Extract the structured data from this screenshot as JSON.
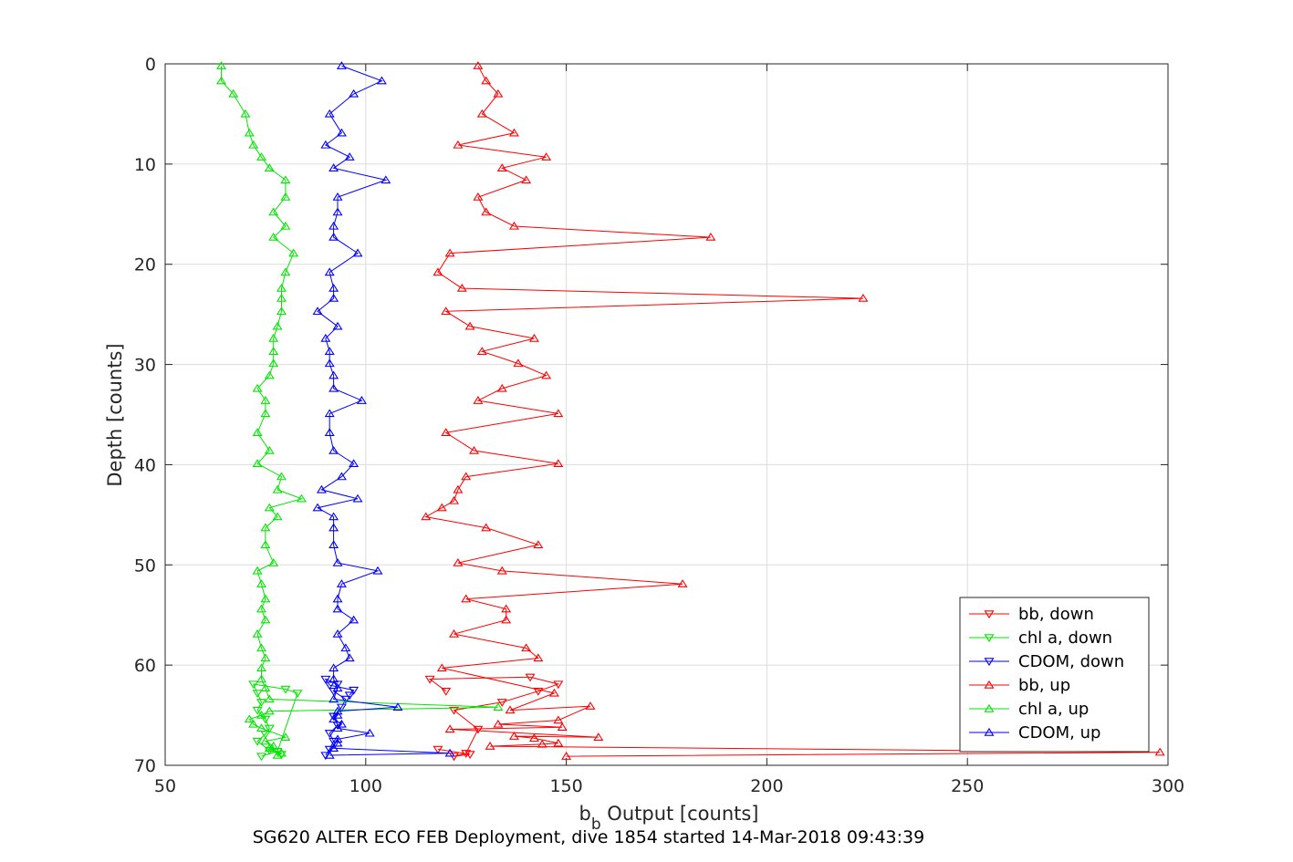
{
  "chart_data": {
    "type": "line",
    "xlabel_main": "b",
    "xlabel_sub": "b",
    "xlabel_rest": " Output [counts]",
    "ylabel": "Depth [counts]",
    "caption": "SG620 ALTER ECO FEB Deployment, dive 1854 started 14-Mar-2018 09:43:39",
    "xlim": [
      50,
      300
    ],
    "ylim": [
      0,
      70
    ],
    "y_reversed": true,
    "grid": true,
    "legend_placement": "bottom-right",
    "xticks": [
      "50",
      "100",
      "150",
      "200",
      "250",
      "300"
    ],
    "yticks": [
      "0",
      "10",
      "20",
      "30",
      "40",
      "50",
      "60",
      "70"
    ],
    "series": [
      {
        "name": "bb, down",
        "color": "#ff0000",
        "marker": "down",
        "points": [
          [
            118,
            68.4
          ],
          [
            126,
            68.9
          ],
          [
            122,
            69.1
          ],
          [
            125,
            68.8
          ],
          [
            128,
            66.4
          ],
          [
            122,
            64.5
          ],
          [
            134,
            63.7
          ],
          [
            143,
            62.6
          ],
          [
            148,
            61.9
          ],
          [
            141,
            61.2
          ],
          [
            116,
            61.4
          ],
          [
            120,
            62.6
          ]
        ]
      },
      {
        "name": "chl a, down",
        "color": "#00e600",
        "marker": "down",
        "points": [
          [
            79,
            68.9
          ],
          [
            76,
            68.5
          ],
          [
            73,
            67.6
          ],
          [
            75,
            66.9
          ],
          [
            76,
            66.3
          ],
          [
            75,
            65.4
          ],
          [
            73,
            64.5
          ],
          [
            74,
            63.7
          ],
          [
            73,
            62.8
          ],
          [
            72,
            61.9
          ],
          [
            80,
            62.4
          ],
          [
            83,
            62.8
          ],
          [
            78,
            68.6
          ],
          [
            74,
            69.1
          ]
        ]
      },
      {
        "name": "CDOM, down",
        "color": "#0000ff",
        "marker": "down",
        "points": [
          [
            90,
            69.0
          ],
          [
            91,
            68.4
          ],
          [
            92,
            67.6
          ],
          [
            91,
            66.8
          ],
          [
            93,
            66.0
          ],
          [
            92,
            65.1
          ],
          [
            94,
            64.2
          ],
          [
            95,
            63.4
          ],
          [
            92,
            62.6
          ],
          [
            93,
            61.9
          ],
          [
            90,
            61.4
          ],
          [
            91,
            62.0
          ],
          [
            97,
            62.5
          ],
          [
            96,
            63.0
          ]
        ]
      },
      {
        "name": "bb, up",
        "color": "#ff0000",
        "marker": "up",
        "points": [
          [
            128,
            0.2
          ],
          [
            130,
            1.7
          ],
          [
            133,
            3.0
          ],
          [
            129,
            5.0
          ],
          [
            137,
            6.9
          ],
          [
            123,
            8.1
          ],
          [
            145,
            9.3
          ],
          [
            134,
            10.4
          ],
          [
            140,
            11.6
          ],
          [
            128,
            13.3
          ],
          [
            130,
            14.8
          ],
          [
            137,
            16.2
          ],
          [
            186,
            17.3
          ],
          [
            121,
            18.9
          ],
          [
            118,
            20.8
          ],
          [
            124,
            22.4
          ],
          [
            224,
            23.4
          ],
          [
            120,
            24.7
          ],
          [
            126,
            26.2
          ],
          [
            142,
            27.4
          ],
          [
            129,
            28.7
          ],
          [
            138,
            29.9
          ],
          [
            145,
            31.1
          ],
          [
            134,
            32.4
          ],
          [
            128,
            33.6
          ],
          [
            148,
            34.9
          ],
          [
            120,
            36.8
          ],
          [
            127,
            38.6
          ],
          [
            148,
            39.9
          ],
          [
            125,
            41.2
          ],
          [
            123,
            42.5
          ],
          [
            122,
            43.6
          ],
          [
            119,
            44.3
          ],
          [
            115,
            45.2
          ],
          [
            130,
            46.3
          ],
          [
            143,
            48.0
          ],
          [
            123,
            49.8
          ],
          [
            134,
            50.6
          ],
          [
            179,
            51.9
          ],
          [
            125,
            53.4
          ],
          [
            135,
            54.4
          ],
          [
            135,
            55.5
          ],
          [
            122,
            56.9
          ],
          [
            140,
            58.3
          ],
          [
            143,
            59.3
          ],
          [
            119,
            60.3
          ],
          [
            147,
            62.8
          ],
          [
            136,
            64.5
          ],
          [
            156,
            64.1
          ],
          [
            148,
            65.5
          ],
          [
            133,
            65.9
          ],
          [
            149,
            66.2
          ],
          [
            121,
            66.4
          ],
          [
            158,
            67.2
          ],
          [
            137,
            67.1
          ],
          [
            142,
            67.3
          ],
          [
            148,
            67.8
          ],
          [
            144,
            67.9
          ],
          [
            131,
            68.1
          ],
          [
            298,
            68.7
          ],
          [
            150,
            69.1
          ]
        ]
      },
      {
        "name": "chl a, up",
        "color": "#00e600",
        "marker": "up",
        "points": [
          [
            64,
            0.2
          ],
          [
            64,
            1.7
          ],
          [
            67,
            3.0
          ],
          [
            70,
            5.0
          ],
          [
            71,
            6.9
          ],
          [
            72,
            8.1
          ],
          [
            74,
            9.3
          ],
          [
            76,
            10.4
          ],
          [
            80,
            11.6
          ],
          [
            80,
            13.3
          ],
          [
            77,
            14.8
          ],
          [
            80,
            16.2
          ],
          [
            77,
            17.3
          ],
          [
            82,
            18.9
          ],
          [
            80,
            20.8
          ],
          [
            79,
            22.4
          ],
          [
            79,
            23.4
          ],
          [
            79,
            24.7
          ],
          [
            78,
            26.2
          ],
          [
            77,
            27.4
          ],
          [
            77,
            28.7
          ],
          [
            77,
            29.9
          ],
          [
            76,
            31.1
          ],
          [
            73,
            32.4
          ],
          [
            75,
            33.6
          ],
          [
            75,
            34.9
          ],
          [
            73,
            36.8
          ],
          [
            76,
            38.6
          ],
          [
            73,
            39.9
          ],
          [
            79,
            41.2
          ],
          [
            78,
            42.5
          ],
          [
            84,
            43.4
          ],
          [
            76,
            44.3
          ],
          [
            78,
            45.2
          ],
          [
            75,
            46.3
          ],
          [
            75,
            48.0
          ],
          [
            77,
            49.8
          ],
          [
            73,
            50.6
          ],
          [
            74,
            51.9
          ],
          [
            75,
            53.4
          ],
          [
            74,
            54.4
          ],
          [
            75,
            55.5
          ],
          [
            73,
            56.9
          ],
          [
            74,
            58.3
          ],
          [
            75,
            59.3
          ],
          [
            74,
            60.3
          ],
          [
            74,
            61.4
          ],
          [
            75,
            62.3
          ],
          [
            76,
            63.4
          ],
          [
            133,
            64.2
          ],
          [
            76,
            64.6
          ],
          [
            74,
            65.0
          ],
          [
            71,
            65.4
          ],
          [
            72,
            65.9
          ],
          [
            74,
            66.3
          ],
          [
            80,
            67.2
          ],
          [
            75,
            67.6
          ],
          [
            77,
            68.1
          ],
          [
            76,
            68.3
          ],
          [
            79,
            68.8
          ],
          [
            78,
            69.0
          ]
        ]
      },
      {
        "name": "CDOM, up",
        "color": "#0000ff",
        "marker": "up",
        "points": [
          [
            94,
            0.2
          ],
          [
            104,
            1.7
          ],
          [
            97,
            3.0
          ],
          [
            91,
            5.0
          ],
          [
            94,
            6.9
          ],
          [
            90,
            8.1
          ],
          [
            96,
            9.3
          ],
          [
            92,
            10.4
          ],
          [
            105,
            11.6
          ],
          [
            93,
            13.3
          ],
          [
            93,
            14.8
          ],
          [
            92,
            16.2
          ],
          [
            92,
            17.3
          ],
          [
            98,
            18.9
          ],
          [
            91,
            20.8
          ],
          [
            92,
            22.4
          ],
          [
            92,
            23.4
          ],
          [
            88,
            24.7
          ],
          [
            93,
            26.2
          ],
          [
            90,
            27.4
          ],
          [
            91,
            28.7
          ],
          [
            91,
            29.9
          ],
          [
            92,
            31.1
          ],
          [
            92,
            32.4
          ],
          [
            99,
            33.6
          ],
          [
            91,
            34.9
          ],
          [
            91,
            36.8
          ],
          [
            92,
            38.6
          ],
          [
            97,
            39.9
          ],
          [
            94,
            41.2
          ],
          [
            89,
            42.5
          ],
          [
            98,
            43.4
          ],
          [
            88,
            44.3
          ],
          [
            92,
            45.2
          ],
          [
            92,
            46.3
          ],
          [
            92,
            48.0
          ],
          [
            93,
            49.8
          ],
          [
            103,
            50.6
          ],
          [
            94,
            51.9
          ],
          [
            93,
            53.4
          ],
          [
            93,
            54.4
          ],
          [
            97,
            55.5
          ],
          [
            93,
            56.9
          ],
          [
            95,
            58.3
          ],
          [
            96,
            59.3
          ],
          [
            92,
            60.3
          ],
          [
            92,
            61.4
          ],
          [
            93,
            62.3
          ],
          [
            92,
            63.4
          ],
          [
            108,
            64.2
          ],
          [
            93,
            64.6
          ],
          [
            93,
            65.0
          ],
          [
            92,
            65.4
          ],
          [
            94,
            65.9
          ],
          [
            93,
            66.3
          ],
          [
            101,
            66.8
          ],
          [
            93,
            67.4
          ],
          [
            93,
            67.8
          ],
          [
            92,
            68.3
          ],
          [
            121,
            68.8
          ],
          [
            91,
            69.0
          ]
        ]
      }
    ]
  }
}
